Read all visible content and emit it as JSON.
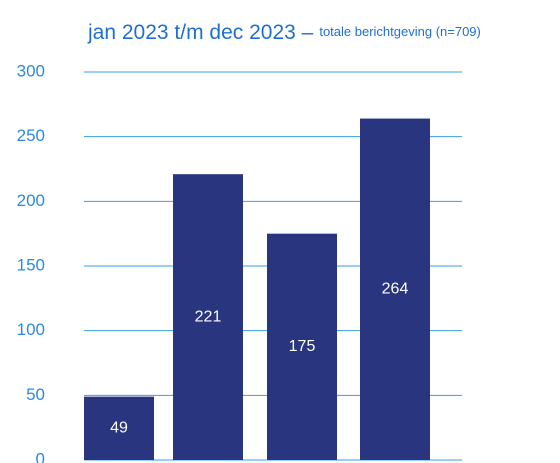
{
  "chart_data": {
    "type": "bar",
    "title": "jan 2023 t/m dec 2023 –",
    "subtitle": "totale berichtgeving (n=709)",
    "categories": [
      null,
      null,
      null,
      null
    ],
    "values": [
      49,
      221,
      175,
      264
    ],
    "color": "#29357f",
    "ylim": [
      0,
      300
    ],
    "yticks": [
      0,
      50,
      100,
      150,
      200,
      250,
      300
    ],
    "grid": true
  }
}
